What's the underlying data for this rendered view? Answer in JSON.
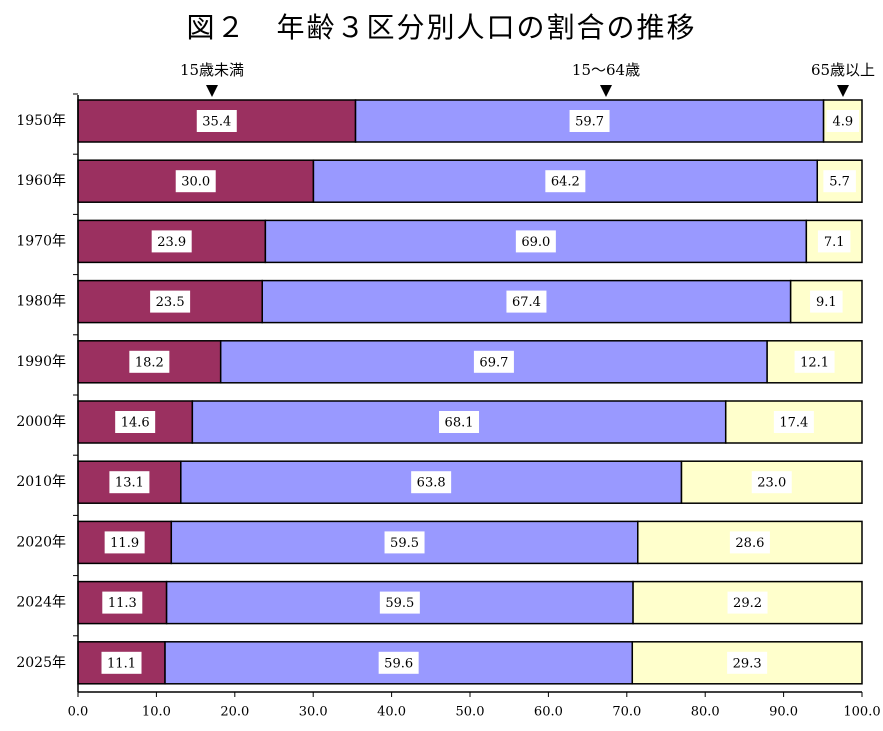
{
  "chart_data": {
    "type": "bar",
    "orientation": "horizontal",
    "stacked": "percent",
    "title": "図２　年齢３区分別人口の割合の推移",
    "categories": [
      "1950年",
      "1960年",
      "1970年",
      "1980年",
      "1990年",
      "2000年",
      "2010年",
      "2020年",
      "2024年",
      "2025年"
    ],
    "series": [
      {
        "name": "15歳未満",
        "color": "#9B3060",
        "values": [
          35.4,
          30.0,
          23.9,
          23.5,
          18.2,
          14.6,
          13.1,
          11.9,
          11.3,
          11.1
        ]
      },
      {
        "name": "15～64歳",
        "color": "#9999FF",
        "values": [
          59.7,
          64.2,
          69.0,
          67.4,
          69.7,
          68.1,
          63.8,
          59.5,
          59.5,
          59.6
        ]
      },
      {
        "name": "65歳以上",
        "color": "#FFFFCC",
        "values": [
          4.9,
          5.7,
          7.1,
          9.1,
          12.1,
          17.4,
          23.0,
          28.6,
          29.2,
          29.3
        ]
      }
    ],
    "value_labels": {
      "15歳未満": [
        "35.4",
        "30.0",
        "23.9",
        "23.5",
        "18.2",
        "14.6",
        "13.1",
        "11.9",
        "11.3",
        "11.1"
      ],
      "15～64歳": [
        "59.7",
        "64.2",
        "69.0",
        "67.4",
        "69.7",
        "68.1",
        "63.8",
        "59.5",
        "59.5",
        "59.6"
      ],
      "65歳以上": [
        "4.9",
        "5.7",
        "7.1",
        "9.1",
        "12.1",
        "17.4",
        "23.0",
        "28.6",
        "29.2",
        "29.3"
      ]
    },
    "xlim": [
      0,
      100
    ],
    "xticks": [
      "0.0",
      "10.0",
      "20.0",
      "30.0",
      "40.0",
      "50.0",
      "60.0",
      "70.0",
      "80.0",
      "90.0",
      "100.0"
    ],
    "grid": false,
    "legend": "top, arrow markers above the bars"
  }
}
